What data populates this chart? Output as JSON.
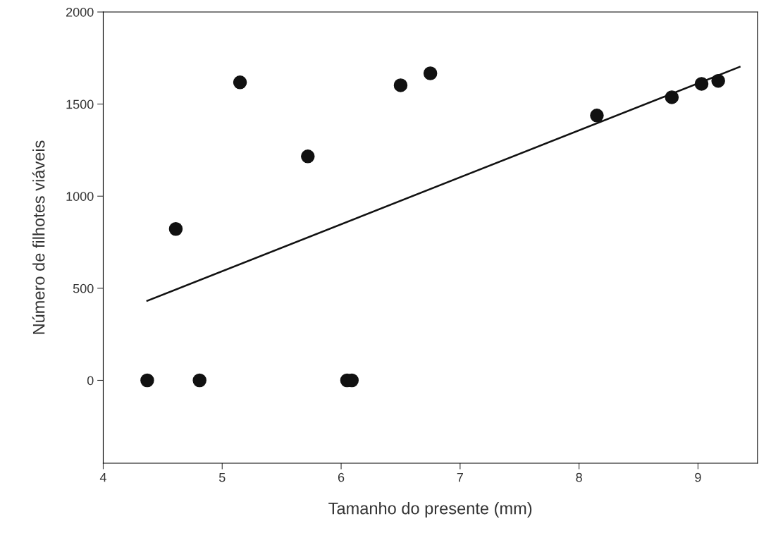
{
  "chart_data": {
    "type": "scatter",
    "xlabel": "Tamanho do presente (mm)",
    "ylabel": "Número de filhotes viáveis",
    "xlim": [
      4,
      9.5
    ],
    "ylim": [
      -450,
      2000
    ],
    "xticks": [
      4,
      5,
      6,
      7,
      8,
      9
    ],
    "yticks": [
      0,
      500,
      1000,
      1500,
      2000
    ],
    "grid": false,
    "legend": false,
    "series": [
      {
        "marker": "circle",
        "color": "#111111",
        "x": [
          4.37,
          4.61,
          4.81,
          5.15,
          5.72,
          6.05,
          6.09,
          6.5,
          6.75,
          8.15,
          8.78,
          9.03,
          9.17
        ],
        "values": [
          0,
          822,
          0,
          1618,
          1216,
          0,
          0,
          1602,
          1667,
          1438,
          1537,
          1610,
          1626
        ]
      },
      {
        "type": "line",
        "color": "#111111",
        "line_style": "solid",
        "marker": "none",
        "x": [
          4.37,
          9.35
        ],
        "values": [
          432,
          1702
        ]
      }
    ]
  }
}
